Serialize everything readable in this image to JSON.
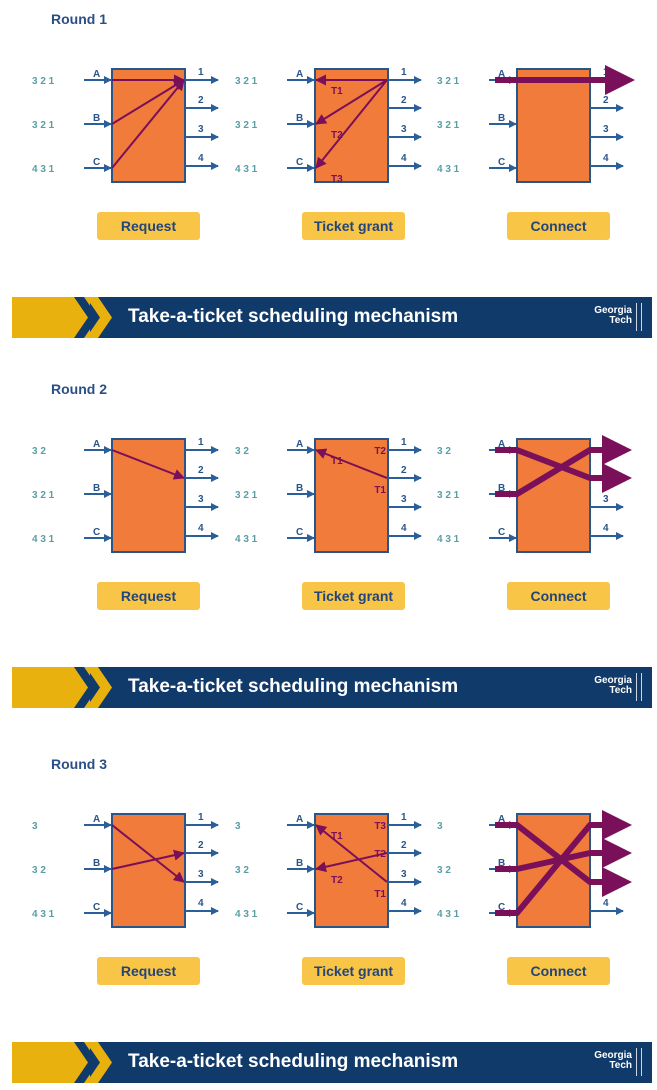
{
  "banner_title": "Take-a-ticket scheduling mechanism",
  "logo": {
    "line1": "Georgia",
    "line2": "Tech"
  },
  "colors": {
    "box": "#f07b3a",
    "border": "#2a5588",
    "arrow": "#2a5f99",
    "path": "#7a0f5a",
    "queue": "#5a9ea4",
    "button": "#f8c547",
    "banner": "#103a6a",
    "gold": "#e9b10e"
  },
  "inputs": [
    "A",
    "B",
    "C"
  ],
  "outputs": [
    "1",
    "2",
    "3",
    "4"
  ],
  "rounds": [
    {
      "title": "Round 1",
      "queues": [
        "3  2  1",
        "3  2  1",
        "4  3  1"
      ],
      "panels": [
        {
          "button": "Request",
          "kind": "request",
          "lines": [
            {
              "from": "A",
              "to": "1"
            },
            {
              "from": "B",
              "to": "1"
            },
            {
              "from": "C",
              "to": "1"
            }
          ],
          "labels": []
        },
        {
          "button": "Ticket grant",
          "kind": "grant",
          "lines": [
            {
              "from": "A",
              "to": "1"
            },
            {
              "from": "B",
              "to": "1"
            },
            {
              "from": "C",
              "to": "1"
            }
          ],
          "labels": [
            {
              "text": "T1",
              "at": "in-A"
            },
            {
              "text": "T2",
              "at": "in-B"
            },
            {
              "text": "T3",
              "at": "in-C"
            }
          ]
        },
        {
          "button": "Connect",
          "kind": "connect",
          "lines": [
            {
              "from": "A",
              "to": "1"
            }
          ],
          "labels": []
        }
      ]
    },
    {
      "title": "Round 2",
      "queues": [
        "3  2",
        "3  2  1",
        "4  3  1"
      ],
      "panels": [
        {
          "button": "Request",
          "kind": "request",
          "lines": [
            {
              "from": "A",
              "to": "2"
            }
          ],
          "labels": []
        },
        {
          "button": "Ticket grant",
          "kind": "grant",
          "lines": [
            {
              "from": "A",
              "to": "2"
            }
          ],
          "labels": [
            {
              "text": "T1",
              "at": "in-A"
            },
            {
              "text": "T2",
              "at": "out-1"
            },
            {
              "text": "T1",
              "at": "out-2"
            }
          ]
        },
        {
          "button": "Connect",
          "kind": "connect",
          "lines": [
            {
              "from": "A",
              "to": "2"
            },
            {
              "from": "B",
              "to": "1"
            }
          ],
          "labels": []
        }
      ]
    },
    {
      "title": "Round 3",
      "queues": [
        "3",
        "3  2",
        "4  3  1"
      ],
      "panels": [
        {
          "button": "Request",
          "kind": "request",
          "lines": [
            {
              "from": "A",
              "to": "3"
            },
            {
              "from": "B",
              "to": "2"
            }
          ],
          "labels": []
        },
        {
          "button": "Ticket grant",
          "kind": "grant",
          "lines": [
            {
              "from": "A",
              "to": "3"
            },
            {
              "from": "B",
              "to": "2"
            }
          ],
          "labels": [
            {
              "text": "T1",
              "at": "in-A"
            },
            {
              "text": "T2",
              "at": "in-B"
            },
            {
              "text": "T3",
              "at": "out-1"
            },
            {
              "text": "T2",
              "at": "out-2"
            },
            {
              "text": "T1",
              "at": "out-3"
            }
          ]
        },
        {
          "button": "Connect",
          "kind": "connect",
          "lines": [
            {
              "from": "A",
              "to": "3"
            },
            {
              "from": "B",
              "to": "2"
            },
            {
              "from": "C",
              "to": "1"
            }
          ],
          "labels": []
        }
      ]
    }
  ]
}
